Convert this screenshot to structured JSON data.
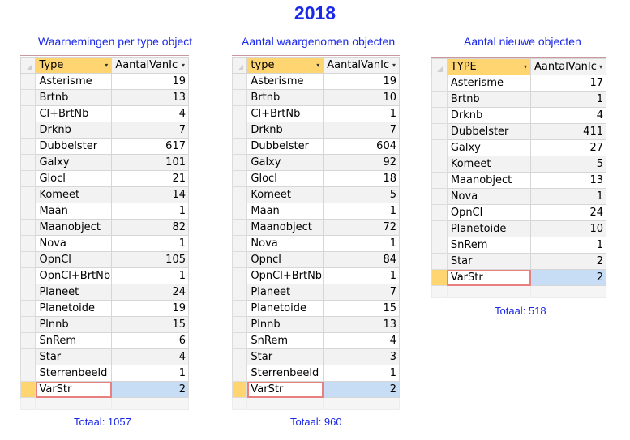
{
  "year": "2018",
  "panels": [
    {
      "title": "Waarnemingen per type object",
      "col1": "Type",
      "col2": "AantalVanIc",
      "rows": [
        [
          "Asterisme",
          "19"
        ],
        [
          "Brtnb",
          "13"
        ],
        [
          "Cl+BrtNb",
          "4"
        ],
        [
          "Drknb",
          "7"
        ],
        [
          "Dubbelster",
          "617"
        ],
        [
          "Galxy",
          "101"
        ],
        [
          "Glocl",
          "21"
        ],
        [
          "Komeet",
          "14"
        ],
        [
          "Maan",
          "1"
        ],
        [
          "Maanobject",
          "82"
        ],
        [
          "Nova",
          "1"
        ],
        [
          "OpnCl",
          "105"
        ],
        [
          "OpnCl+BrtNb",
          "1"
        ],
        [
          "Planeet",
          "24"
        ],
        [
          "Planetoide",
          "19"
        ],
        [
          "Plnnb",
          "15"
        ],
        [
          "SnRem",
          "6"
        ],
        [
          "Star",
          "4"
        ],
        [
          "Sterrenbeeld",
          "1"
        ],
        [
          "VarStr",
          "2"
        ]
      ],
      "total": "Totaal: 1057"
    },
    {
      "title": "Aantal waargenomen objecten",
      "col1": "type",
      "col2": "AantalVanIc",
      "rows": [
        [
          "Asterisme",
          "19"
        ],
        [
          "Brtnb",
          "10"
        ],
        [
          "Cl+BrtNb",
          "1"
        ],
        [
          "Drknb",
          "7"
        ],
        [
          "Dubbelster",
          "604"
        ],
        [
          "Galxy",
          "92"
        ],
        [
          "Glocl",
          "18"
        ],
        [
          "Komeet",
          "5"
        ],
        [
          "Maan",
          "1"
        ],
        [
          "Maanobject",
          "72"
        ],
        [
          "Nova",
          "1"
        ],
        [
          "Opncl",
          "84"
        ],
        [
          "OpnCl+BrtNb",
          "1"
        ],
        [
          "Planeet",
          "7"
        ],
        [
          "Planetoide",
          "15"
        ],
        [
          "Plnnb",
          "13"
        ],
        [
          "SnRem",
          "4"
        ],
        [
          "Star",
          "3"
        ],
        [
          "Sterrenbeeld",
          "1"
        ],
        [
          "VarStr",
          "2"
        ]
      ],
      "total": "Totaal: 960"
    },
    {
      "title": "Aantal nieuwe objecten",
      "col1": "TYPE",
      "col2": "AantalVanIc",
      "rows": [
        [
          "Asterisme",
          "17"
        ],
        [
          "Brtnb",
          "1"
        ],
        [
          "Drknb",
          "4"
        ],
        [
          "Dubbelster",
          "411"
        ],
        [
          "Galxy",
          "27"
        ],
        [
          "Komeet",
          "5"
        ],
        [
          "Maanobject",
          "13"
        ],
        [
          "Nova",
          "1"
        ],
        [
          "OpnCl",
          "24"
        ],
        [
          "Planetoide",
          "10"
        ],
        [
          "SnRem",
          "1"
        ],
        [
          "Star",
          "2"
        ],
        [
          "VarStr",
          "2"
        ]
      ],
      "total": "Totaal: 518"
    }
  ]
}
